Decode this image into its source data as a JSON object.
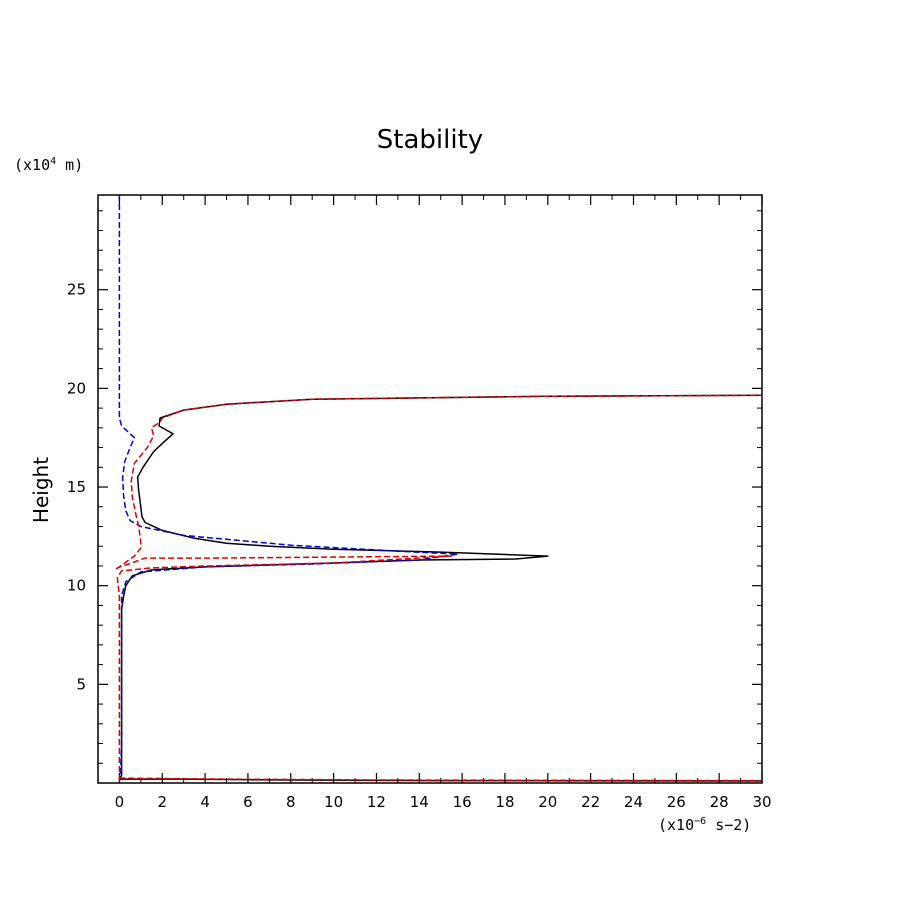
{
  "chart_data": {
    "type": "line",
    "title": "Stability",
    "ylabel": "Height",
    "y_unit": {
      "prefix": "(x10",
      "exp": "4",
      "suffix": " m)"
    },
    "x_unit": {
      "prefix": "(x10",
      "exp": "−6",
      "suffix": " s−2)"
    },
    "xlim": [
      -1,
      30
    ],
    "ylim": [
      0,
      29.8
    ],
    "x_ticks": [
      0,
      2,
      4,
      6,
      8,
      10,
      12,
      14,
      16,
      18,
      20,
      22,
      24,
      26,
      28,
      30
    ],
    "y_ticks": [
      5,
      10,
      15,
      20,
      25
    ],
    "series": [
      {
        "color": "#000000",
        "dash": "solid",
        "points": [
          [
            0,
            0.1
          ],
          [
            0.1,
            0.4
          ],
          [
            0.1,
            2
          ],
          [
            0.1,
            5
          ],
          [
            0.1,
            8
          ],
          [
            0.1,
            8.8
          ],
          [
            0.2,
            9.5
          ],
          [
            0.3,
            10
          ],
          [
            0.6,
            10.5
          ],
          [
            1.5,
            10.8
          ],
          [
            4,
            10.95
          ],
          [
            10,
            11.15
          ],
          [
            14,
            11.3
          ],
          [
            18.5,
            11.35
          ],
          [
            20,
            11.5
          ],
          [
            15,
            11.7
          ],
          [
            10,
            11.85
          ],
          [
            7,
            12
          ],
          [
            5,
            12.15
          ],
          [
            3.5,
            12.4
          ],
          [
            2,
            12.8
          ],
          [
            1.2,
            13.2
          ],
          [
            1.05,
            13.5
          ],
          [
            1,
            14
          ],
          [
            0.9,
            14.8
          ],
          [
            0.85,
            15.5
          ],
          [
            1.1,
            16
          ],
          [
            1.6,
            16.8
          ],
          [
            2.1,
            17.3
          ],
          [
            2.5,
            17.7
          ],
          [
            1.85,
            18.1
          ],
          [
            1.9,
            18.5
          ],
          [
            3,
            18.9
          ],
          [
            5,
            19.2
          ],
          [
            9,
            19.45
          ],
          [
            20,
            19.6
          ],
          [
            30,
            19.65
          ]
        ]
      },
      {
        "color": "#0000dd",
        "dash": "dashed",
        "points": [
          [
            0,
            29.8
          ],
          [
            0,
            25
          ],
          [
            0,
            20
          ],
          [
            0,
            18.5
          ],
          [
            0.1,
            18.1
          ],
          [
            0.4,
            17.8
          ],
          [
            0.7,
            17.5
          ],
          [
            0.5,
            17
          ],
          [
            0.25,
            16.3
          ],
          [
            0.15,
            15.5
          ],
          [
            0.2,
            14.5
          ],
          [
            0.3,
            13.8
          ],
          [
            0.5,
            13.3
          ],
          [
            1,
            13
          ],
          [
            3,
            12.55
          ],
          [
            8,
            12.05
          ],
          [
            13,
            11.75
          ],
          [
            15.8,
            11.6
          ],
          [
            14,
            11.3
          ],
          [
            9,
            11.1
          ],
          [
            4,
            10.95
          ],
          [
            1,
            10.7
          ],
          [
            0.3,
            10.2
          ],
          [
            0.1,
            9.5
          ],
          [
            0.1,
            8
          ],
          [
            0.1,
            5
          ],
          [
            0.1,
            2
          ],
          [
            0.05,
            0.5
          ],
          [
            0,
            0.1
          ]
        ]
      },
      {
        "color": "#dd0000",
        "dash": "dashed",
        "points": [
          [
            0,
            0.1
          ],
          [
            0,
            2
          ],
          [
            0,
            5
          ],
          [
            0,
            8
          ],
          [
            0,
            9.5
          ],
          [
            -0.1,
            10.4
          ],
          [
            0.1,
            10.75
          ],
          [
            1.5,
            10.9
          ],
          [
            4,
            11
          ],
          [
            10,
            11.15
          ],
          [
            15.5,
            11.5
          ],
          [
            4.2,
            11.4
          ],
          [
            1.2,
            11.4
          ],
          [
            0.7,
            11.2
          ],
          [
            -0.1,
            10.9
          ],
          [
            -0.2,
            10.8
          ],
          [
            0.7,
            11.5
          ],
          [
            1,
            11.9
          ],
          [
            1,
            12.2
          ],
          [
            0.9,
            13
          ],
          [
            0.75,
            13.7
          ],
          [
            0.6,
            14.5
          ],
          [
            0.55,
            15.3
          ],
          [
            0.7,
            16.2
          ],
          [
            1.3,
            17
          ],
          [
            1.6,
            17.6
          ],
          [
            1.5,
            18
          ],
          [
            1.9,
            18.3
          ],
          [
            2,
            18.5
          ],
          [
            3,
            18.9
          ],
          [
            5,
            19.2
          ],
          [
            9,
            19.45
          ],
          [
            20,
            19.6
          ],
          [
            30,
            19.65
          ]
        ]
      },
      {
        "color": "#000000",
        "dash": "solid",
        "points": [
          [
            0,
            0.2
          ],
          [
            3,
            0.2
          ],
          [
            8,
            0.15
          ],
          [
            15,
            0.12
          ],
          [
            30,
            0.1
          ]
        ]
      },
      {
        "color": "#dd0000",
        "dash": "dashed",
        "points": [
          [
            0,
            0.25
          ],
          [
            5,
            0.2
          ],
          [
            12,
            0.15
          ],
          [
            30,
            0.12
          ]
        ]
      }
    ]
  }
}
